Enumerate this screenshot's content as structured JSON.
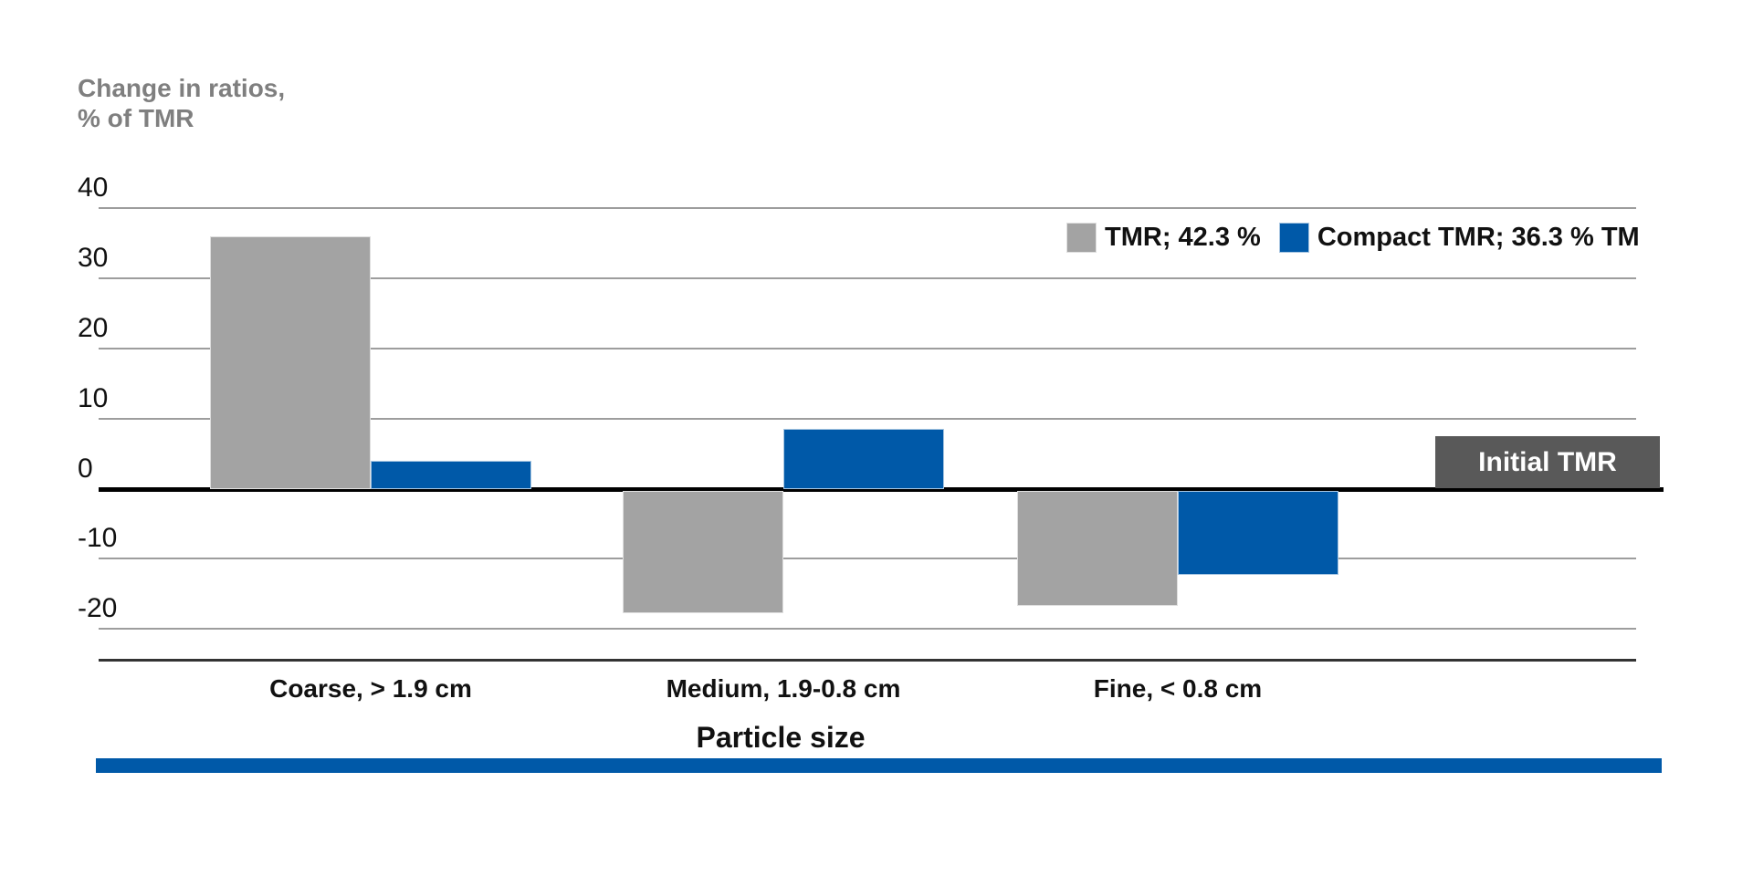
{
  "chart_data": {
    "type": "bar",
    "y_axis_title_lines": [
      "Change in ratios,",
      "% of TMR"
    ],
    "xlabel": "Particle size",
    "categories": [
      "Coarse, > 1.9 cm",
      "Medium, 1.9-0.8 cm",
      "Fine, < 0.8 cm"
    ],
    "series": [
      {
        "name": "TMR; 42.3 %",
        "color": "#a3a3a3",
        "values": [
          36,
          -17.5,
          -16.5
        ]
      },
      {
        "name": "Compact TMR; 36.3 % TM",
        "color": "#0059a8",
        "values": [
          4,
          8.5,
          -12
        ]
      }
    ],
    "yticks": [
      40,
      30,
      20,
      10,
      0,
      -10,
      -20
    ],
    "ylim": [
      -24.5,
      40
    ],
    "grid": true,
    "legend_position": "top-right",
    "zero_line": true,
    "annotation": "Initial TMR"
  },
  "colors": {
    "bar_gray": "#a3a3a3",
    "bar_blue": "#0059a8",
    "annotation_box": "#595959",
    "axis_title_gray": "#7f7f7f",
    "gridline": "#9d9d9d",
    "zero_line": "#000000",
    "bottom_rule_blue": "#0059a8"
  }
}
